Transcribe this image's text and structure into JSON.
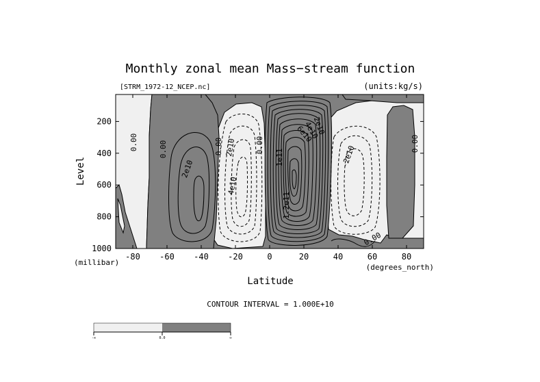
{
  "chart_data": {
    "type": "contour",
    "title": "Monthly zonal mean Mass−stream function",
    "file_label": "[STRM_1972-12_NCEP.nc]",
    "units_label": "(units:kg/s)",
    "xlabel": "Latitude",
    "ylabel": "Level",
    "x_units": "(degrees_north)",
    "y_units": "(millibar)",
    "xlim": [
      -90,
      90
    ],
    "ylim": [
      1000,
      30
    ],
    "x_ticks": [
      "-80",
      "-60",
      "-40",
      "-20",
      "0",
      "20",
      "40",
      "60",
      "80"
    ],
    "x_tick_values": [
      -80,
      -60,
      -40,
      -20,
      0,
      20,
      40,
      60,
      80
    ],
    "y_ticks": [
      "200",
      "400",
      "600",
      "800",
      "1000"
    ],
    "y_tick_values": [
      200,
      400,
      600,
      800,
      1000
    ],
    "contour_interval_text": "CONTOUR INTERVAL = 1.000E+10",
    "contour_interval": 10000000000,
    "shading": {
      "positive": "#808080",
      "negative": "#f0f0f0",
      "line": "#000000"
    },
    "contour_labels": [
      {
        "text": "0.00",
        "lat": -67,
        "lev": 340
      },
      {
        "text": "0.00",
        "lat": -61,
        "lev": 330
      },
      {
        "text": "2e10",
        "lat": -43,
        "lev": 500
      },
      {
        "text": "0.00",
        "lat": -31,
        "lev": 320
      },
      {
        "text": "2e10",
        "lat": -23,
        "lev": 330
      },
      {
        "text": "4e10",
        "lat": -22,
        "lev": 560
      },
      {
        "text": "0.00",
        "lat": -6,
        "lev": 320
      },
      {
        "text": "1e11",
        "lat": 7,
        "lev": 410
      },
      {
        "text": "1.2e11",
        "lat": 10,
        "lev": 720
      },
      {
        "text": "2e10",
        "lat": 28,
        "lev": 240
      },
      {
        "text": "4e10",
        "lat": 23,
        "lev": 280
      },
      {
        "text": "6e10",
        "lat": 20,
        "lev": 320
      },
      {
        "text": "-2e10",
        "lat": 49,
        "lev": 410
      },
      {
        "text": "0.00",
        "lat": 60,
        "lev": 960
      },
      {
        "text": "0.00",
        "lat": 86,
        "lev": 320
      }
    ],
    "colorbar": {
      "labels": [
        "-∞",
        "0.0",
        "∞"
      ],
      "colors": [
        "#f0f0f0",
        "#808080"
      ]
    }
  }
}
